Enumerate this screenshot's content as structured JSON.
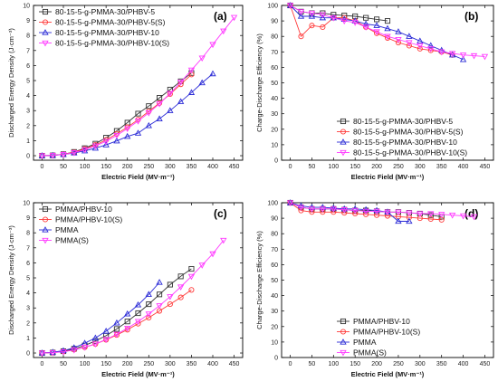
{
  "figure": {
    "colors": {
      "black": "#333333",
      "red": "#ff3b3b",
      "blue": "#2a2ad6",
      "magenta": "#ff3bff"
    }
  },
  "chart_data": [
    {
      "type": "line",
      "panel_label": "(a)",
      "xlabel": "Electric Field (MV·m⁻¹)",
      "ylabel": "Discharged Energy Density (J·cm⁻³)",
      "xlim": [
        -20,
        470
      ],
      "ylim": [
        -0.3,
        10
      ],
      "xticks": [
        0,
        50,
        100,
        150,
        200,
        250,
        300,
        350,
        400,
        450
      ],
      "yticks": [
        0,
        1,
        2,
        3,
        4,
        5,
        6,
        7,
        8,
        9,
        10
      ],
      "legend_position": "top-left",
      "series": [
        {
          "name": "80-15-5-g-PMMA-30/PHBV-5",
          "color": "black",
          "marker": "square",
          "x": [
            0,
            25,
            50,
            75,
            100,
            125,
            150,
            175,
            200,
            225,
            250,
            275,
            300,
            325,
            350
          ],
          "y": [
            0,
            0.02,
            0.1,
            0.25,
            0.5,
            0.8,
            1.2,
            1.65,
            2.2,
            2.8,
            3.3,
            3.85,
            4.4,
            4.95,
            5.5
          ]
        },
        {
          "name": "80-15-5-g-PMMA-30/PHBV-5(S)",
          "color": "red",
          "marker": "circle",
          "x": [
            0,
            25,
            50,
            75,
            100,
            125,
            150,
            175,
            200,
            225,
            250,
            275,
            300,
            325,
            350
          ],
          "y": [
            0,
            0.02,
            0.1,
            0.23,
            0.45,
            0.72,
            1.05,
            1.45,
            1.9,
            2.4,
            2.95,
            3.5,
            4.1,
            4.75,
            5.4
          ]
        },
        {
          "name": "80-15-5-g-PMMA-30/PHBV-10",
          "color": "blue",
          "marker": "triangle-up",
          "x": [
            0,
            25,
            50,
            75,
            100,
            125,
            150,
            175,
            200,
            225,
            250,
            275,
            300,
            325,
            350,
            375,
            400
          ],
          "y": [
            0,
            0.02,
            0.08,
            0.18,
            0.32,
            0.5,
            0.72,
            0.98,
            1.28,
            1.5,
            2.0,
            2.45,
            3.0,
            3.6,
            4.2,
            4.85,
            5.45
          ]
        },
        {
          "name": "80-15-5-g-PMMA-30/PHBV-10(S)",
          "color": "magenta",
          "marker": "triangle-down",
          "x": [
            0,
            25,
            50,
            75,
            100,
            125,
            150,
            175,
            200,
            225,
            250,
            275,
            300,
            325,
            350,
            375,
            400,
            425,
            450
          ],
          "y": [
            0,
            0.02,
            0.08,
            0.2,
            0.4,
            0.65,
            0.95,
            1.35,
            1.8,
            2.3,
            2.85,
            3.45,
            4.15,
            4.9,
            5.7,
            6.5,
            7.4,
            8.3,
            9.2
          ]
        }
      ]
    },
    {
      "type": "line",
      "panel_label": "(b)",
      "xlabel": "Electric Field (MV·m⁻¹)",
      "ylabel": "Charge-Discharge Efficiency (%)",
      "xlim": [
        -20,
        470
      ],
      "ylim": [
        0,
        100
      ],
      "xticks": [
        0,
        50,
        100,
        150,
        200,
        250,
        300,
        350,
        400,
        450
      ],
      "yticks": [
        0,
        10,
        20,
        30,
        40,
        50,
        60,
        70,
        80,
        90,
        100
      ],
      "legend_position": "bottom-right",
      "series": [
        {
          "name": "80-15-5-g-PMMA-30/PHBV-5",
          "color": "black",
          "marker": "square",
          "x": [
            0,
            25,
            50,
            75,
            100,
            125,
            150,
            175,
            200,
            225
          ],
          "y": [
            100,
            96,
            95,
            95,
            94,
            93.5,
            93,
            92,
            91,
            90
          ]
        },
        {
          "name": "80-15-5-g-PMMA-30/PHBV-5(S)",
          "color": "red",
          "marker": "circle",
          "x": [
            0,
            25,
            50,
            75,
            100,
            125,
            150,
            175,
            200,
            225,
            250,
            275,
            300,
            325,
            350,
            375
          ],
          "y": [
            100,
            80,
            87,
            86,
            92,
            92,
            90,
            86,
            82,
            79,
            76,
            74,
            72,
            71,
            70,
            68
          ]
        },
        {
          "name": "80-15-5-g-PMMA-30/PHBV-10",
          "color": "blue",
          "marker": "triangle-up",
          "x": [
            0,
            25,
            50,
            75,
            100,
            125,
            150,
            175,
            200,
            225,
            250,
            275,
            300,
            325,
            350,
            375,
            400
          ],
          "y": [
            100,
            93,
            93,
            92,
            92,
            91,
            90,
            88,
            87,
            85,
            83,
            80,
            77,
            74,
            71,
            68,
            65
          ]
        },
        {
          "name": "80-15-5-g-PMMA-30/PHBV-10(S)",
          "color": "magenta",
          "marker": "triangle-down",
          "x": [
            0,
            25,
            50,
            75,
            100,
            125,
            150,
            175,
            200,
            225,
            250,
            275,
            300,
            325,
            350,
            375,
            400,
            425,
            450
          ],
          "y": [
            100,
            96,
            95,
            94,
            92,
            90,
            89,
            86,
            83,
            80,
            78,
            76,
            74,
            72,
            70,
            69,
            68,
            67.5,
            67
          ]
        }
      ]
    },
    {
      "type": "line",
      "panel_label": "(c)",
      "xlabel": "Electric Field (MV·m⁻¹)",
      "ylabel": "Discharged Energy Density (J·cm⁻³)",
      "xlim": [
        -20,
        470
      ],
      "ylim": [
        -0.3,
        10
      ],
      "xticks": [
        0,
        50,
        100,
        150,
        200,
        250,
        300,
        350,
        400,
        450
      ],
      "yticks": [
        0,
        1,
        2,
        3,
        4,
        5,
        6,
        7,
        8,
        9,
        10
      ],
      "legend_position": "top-left",
      "series": [
        {
          "name": "PMMA/PHBV-10",
          "color": "black",
          "marker": "square",
          "x": [
            0,
            25,
            50,
            75,
            100,
            125,
            150,
            175,
            200,
            225,
            250,
            275,
            300,
            325,
            350
          ],
          "y": [
            0,
            0.03,
            0.12,
            0.28,
            0.5,
            0.8,
            1.15,
            1.6,
            2.1,
            2.65,
            3.25,
            3.9,
            4.55,
            5.1,
            5.6
          ]
        },
        {
          "name": "PMMA/PHBV-10(S)",
          "color": "red",
          "marker": "circle",
          "x": [
            0,
            25,
            50,
            75,
            100,
            125,
            150,
            175,
            200,
            225,
            250,
            275,
            300,
            325,
            350
          ],
          "y": [
            0,
            0.03,
            0.1,
            0.22,
            0.38,
            0.6,
            0.88,
            1.2,
            1.55,
            1.95,
            2.35,
            2.8,
            3.25,
            3.7,
            4.2
          ]
        },
        {
          "name": "PMMA",
          "color": "blue",
          "marker": "triangle-up",
          "x": [
            0,
            25,
            50,
            75,
            100,
            125,
            150,
            175,
            200,
            225,
            250,
            275
          ],
          "y": [
            0,
            0.05,
            0.15,
            0.35,
            0.65,
            1.0,
            1.45,
            2.0,
            2.6,
            3.2,
            3.9,
            4.7
          ]
        },
        {
          "name": "PMMA(S)",
          "color": "magenta",
          "marker": "triangle-down",
          "x": [
            0,
            25,
            50,
            75,
            100,
            125,
            150,
            175,
            200,
            225,
            250,
            275,
            300,
            325,
            350,
            375,
            400,
            425
          ],
          "y": [
            0,
            0.02,
            0.08,
            0.2,
            0.38,
            0.6,
            0.9,
            1.25,
            1.65,
            2.1,
            2.6,
            3.15,
            3.75,
            4.4,
            5.1,
            5.85,
            6.6,
            7.5
          ]
        }
      ]
    },
    {
      "type": "line",
      "panel_label": "(d)",
      "xlabel": "Electric Field (MV·m⁻¹)",
      "ylabel": "Charge-Discharge Efficiency (%)",
      "xlim": [
        -20,
        470
      ],
      "ylim": [
        0,
        100
      ],
      "xticks": [
        0,
        50,
        100,
        150,
        200,
        250,
        300,
        350,
        400,
        450
      ],
      "yticks": [
        0,
        10,
        20,
        30,
        40,
        50,
        60,
        70,
        80,
        90,
        100
      ],
      "legend_position": "bottom-right",
      "series": [
        {
          "name": "PMMA/PHBV-10",
          "color": "black",
          "marker": "square",
          "x": [
            0,
            25,
            50,
            75,
            100,
            125,
            150,
            175,
            200,
            225,
            250,
            275,
            300,
            325,
            350
          ],
          "y": [
            100,
            97,
            96,
            96,
            96,
            95.5,
            95,
            95,
            94.5,
            94,
            94,
            93.5,
            93,
            92,
            91
          ]
        },
        {
          "name": "PMMA/PHBV-10(S)",
          "color": "red",
          "marker": "circle",
          "x": [
            0,
            25,
            50,
            75,
            100,
            125,
            150,
            175,
            200,
            225,
            250,
            275,
            300,
            325,
            350
          ],
          "y": [
            100,
            95,
            94,
            94,
            94,
            93.5,
            93,
            92.5,
            92,
            91.5,
            91,
            90.5,
            90,
            89.5,
            89
          ]
        },
        {
          "name": "PMMA",
          "color": "blue",
          "marker": "triangle-up",
          "x": [
            0,
            25,
            50,
            75,
            100,
            125,
            150,
            175,
            200,
            225,
            250,
            275
          ],
          "y": [
            100,
            98,
            97,
            97,
            96.5,
            96,
            96,
            95.5,
            95,
            94,
            88,
            88
          ]
        },
        {
          "name": "PMMA(S)",
          "color": "magenta",
          "marker": "triangle-down",
          "x": [
            0,
            25,
            50,
            75,
            100,
            125,
            150,
            175,
            200,
            225,
            250,
            275,
            300,
            325,
            350,
            375,
            400,
            425
          ],
          "y": [
            100,
            97,
            96,
            96,
            96,
            95.5,
            95,
            94.5,
            94.5,
            94,
            94,
            93.5,
            93,
            93,
            92.5,
            92,
            91.5,
            91
          ]
        }
      ]
    }
  ]
}
